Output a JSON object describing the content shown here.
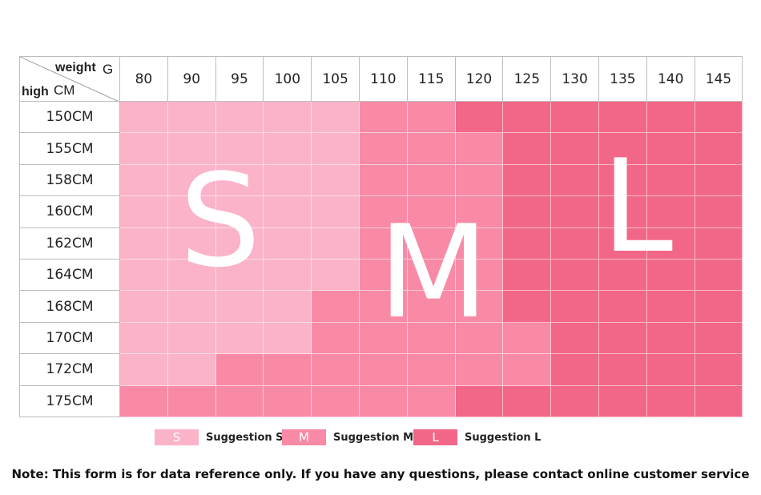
{
  "corner": {
    "weight_label": "weight",
    "weight_unit": "G",
    "height_label": "high",
    "height_unit": "CM"
  },
  "weights": [
    "80",
    "90",
    "95",
    "100",
    "105",
    "110",
    "115",
    "120",
    "125",
    "130",
    "135",
    "140",
    "145"
  ],
  "heights": [
    "150CM",
    "155CM",
    "158CM",
    "160CM",
    "162CM",
    "164CM",
    "168CM",
    "170CM",
    "172CM",
    "175CM"
  ],
  "grid": [
    [
      "S",
      "S",
      "S",
      "S",
      "S",
      "M",
      "M",
      "L",
      "L",
      "L",
      "L",
      "L",
      "L"
    ],
    [
      "S",
      "S",
      "S",
      "S",
      "S",
      "M",
      "M",
      "M",
      "L",
      "L",
      "L",
      "L",
      "L"
    ],
    [
      "S",
      "S",
      "S",
      "S",
      "S",
      "M",
      "M",
      "M",
      "L",
      "L",
      "L",
      "L",
      "L"
    ],
    [
      "S",
      "S",
      "S",
      "S",
      "S",
      "M",
      "M",
      "M",
      "L",
      "L",
      "L",
      "L",
      "L"
    ],
    [
      "S",
      "S",
      "S",
      "S",
      "S",
      "M",
      "M",
      "M",
      "L",
      "L",
      "L",
      "L",
      "L"
    ],
    [
      "S",
      "S",
      "S",
      "S",
      "S",
      "M",
      "M",
      "M",
      "L",
      "L",
      "L",
      "L",
      "L"
    ],
    [
      "S",
      "S",
      "S",
      "S",
      "M",
      "M",
      "M",
      "M",
      "L",
      "L",
      "L",
      "L",
      "L"
    ],
    [
      "S",
      "S",
      "S",
      "S",
      "M",
      "M",
      "M",
      "M",
      "M",
      "L",
      "L",
      "L",
      "L"
    ],
    [
      "S",
      "S",
      "M",
      "M",
      "M",
      "M",
      "M",
      "M",
      "M",
      "L",
      "L",
      "L",
      "L"
    ],
    [
      "M",
      "M",
      "M",
      "M",
      "M",
      "M",
      "M",
      "L",
      "L",
      "L",
      "L",
      "L",
      "L"
    ]
  ],
  "big_letters": {
    "S": "S",
    "M": "M",
    "L": "L"
  },
  "colors": {
    "S": "#fbb3c8",
    "M": "#f98aa6",
    "L": "#f26787"
  },
  "legend": [
    {
      "size": "S",
      "swatch_text": "S",
      "label": "Suggestion S"
    },
    {
      "size": "M",
      "swatch_text": "M",
      "label": "Suggestion M"
    },
    {
      "size": "L",
      "swatch_text": "L",
      "label": "Suggestion L"
    }
  ],
  "note": "Note: This form is for data reference only. If you have any questions, please contact online customer service"
}
